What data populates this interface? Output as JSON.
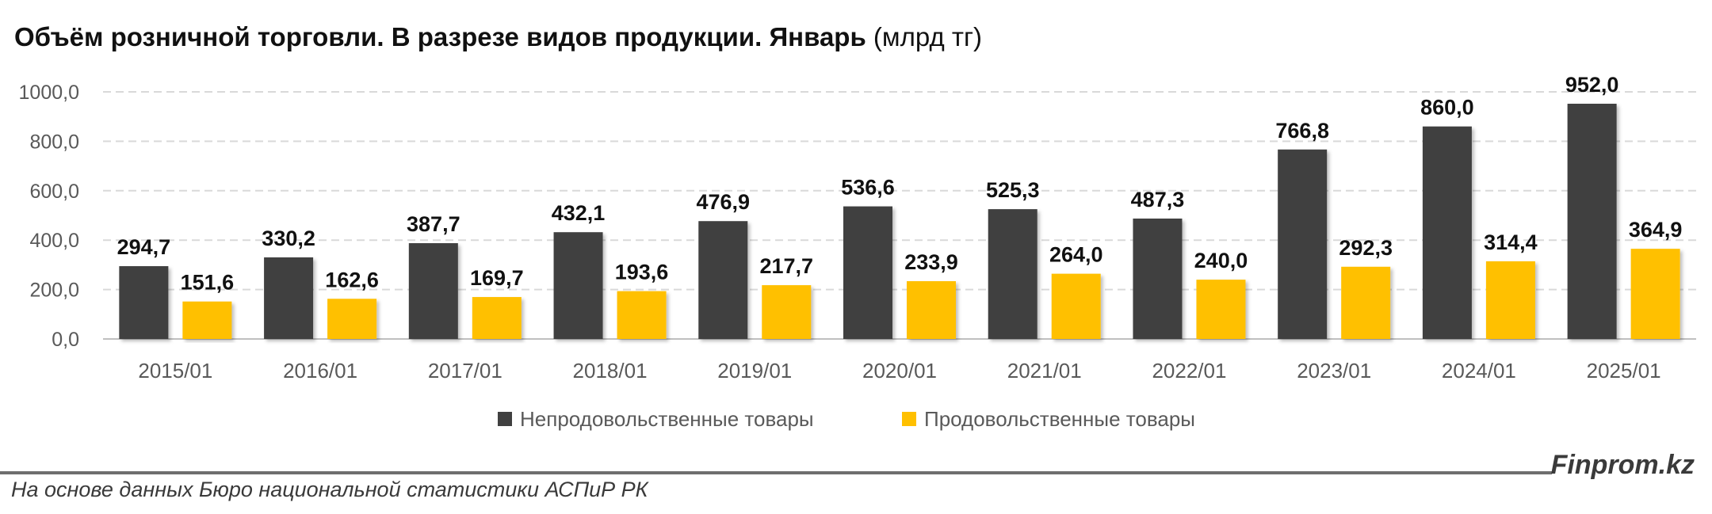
{
  "header": {
    "title_bold": "Объём розничной торговли. В разрезе видов продукции. Январь",
    "title_unit": "(млрд тг)"
  },
  "footer": {
    "source": "На основе данных Бюро национальной статистики АСПиР РК",
    "brand": "Finprom.kz"
  },
  "colors": {
    "non_food": "#404040",
    "food": "#FFC000",
    "grid": "#d9d9d9",
    "axis_text": "#595959"
  },
  "chart_data": {
    "type": "bar",
    "title": "Объём розничной торговли. В разрезе видов продукции. Январь (млрд тг)",
    "categories": [
      "2015/01",
      "2016/01",
      "2017/01",
      "2018/01",
      "2019/01",
      "2020/01",
      "2021/01",
      "2022/01",
      "2023/01",
      "2024/01",
      "2025/01"
    ],
    "series": [
      {
        "name": "Непродовольственные товары",
        "values": [
          294.7,
          330.2,
          387.7,
          432.1,
          476.9,
          536.6,
          525.3,
          487.3,
          766.8,
          860.0,
          952.0
        ],
        "labels": [
          "294,7",
          "330,2",
          "387,7",
          "432,1",
          "476,9",
          "536,6",
          "525,3",
          "487,3",
          "766,8",
          "860,0",
          "952,0"
        ]
      },
      {
        "name": "Продовольственные товары",
        "values": [
          151.6,
          162.6,
          169.7,
          193.6,
          217.7,
          233.9,
          264.0,
          240.0,
          292.3,
          314.4,
          364.9
        ],
        "labels": [
          "151,6",
          "162,6",
          "169,7",
          "193,6",
          "217,7",
          "233,9",
          "264,0",
          "240,0",
          "292,3",
          "314,4",
          "364,9"
        ]
      }
    ],
    "yticks": [
      0,
      200,
      400,
      600,
      800,
      1000
    ],
    "ytick_labels": [
      "0,0",
      "200,0",
      "400,0",
      "600,0",
      "800,0",
      "1000,0"
    ],
    "ylim": [
      0,
      1000
    ],
    "grid": true,
    "legend": "bottom-center",
    "xlabel": "",
    "ylabel": ""
  }
}
